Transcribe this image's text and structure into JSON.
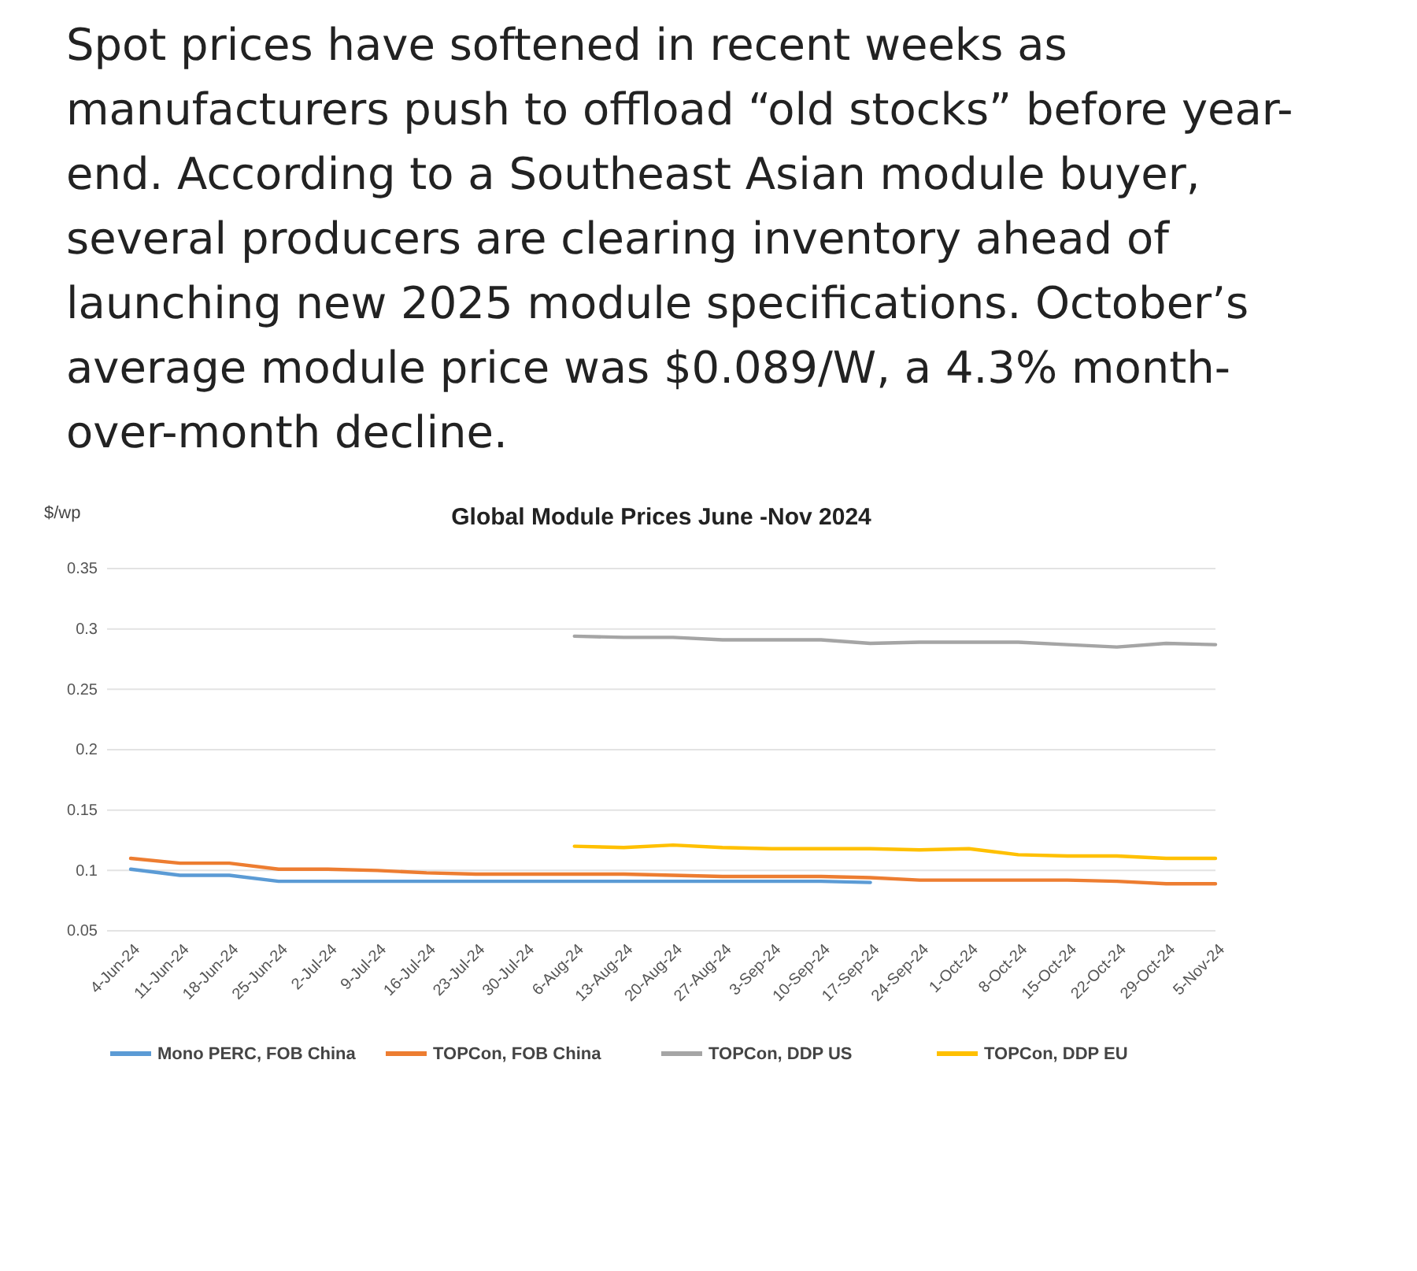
{
  "chart_data": {
    "type": "line",
    "title": "Global Module Prices June -Nov 2024",
    "ylabel": "$/wp",
    "annotations": [
      "Spot prices have softened in recent weeks as manufacturers push to offload “old stocks” before year-end. According to a Southeast Asian module buyer, several producers are clearing inventory ahead of launching new 2025 module specifications. October’s average module price was $0.089/W, a 4.3% month-over-month decline."
    ],
    "categories": [
      "4-Jun-24",
      "11-Jun-24",
      "18-Jun-24",
      "25-Jun-24",
      "2-Jul-24",
      "9-Jul-24",
      "16-Jul-24",
      "23-Jul-24",
      "30-Jul-24",
      "6-Aug-24",
      "13-Aug-24",
      "20-Aug-24",
      "27-Aug-24",
      "3-Sep-24",
      "10-Sep-24",
      "17-Sep-24",
      "24-Sep-24",
      "1-Oct-24",
      "8-Oct-24",
      "15-Oct-24",
      "22-Oct-24",
      "29-Oct-24",
      "5-Nov-24"
    ],
    "series": [
      {
        "name": "Mono PERC, FOB China",
        "color": "#5b9bd5",
        "values": [
          0.101,
          0.096,
          0.096,
          0.091,
          0.091,
          0.091,
          0.091,
          0.091,
          0.091,
          0.091,
          0.091,
          0.091,
          0.091,
          0.091,
          0.091,
          0.09,
          null,
          null,
          null,
          null,
          null,
          null,
          null
        ]
      },
      {
        "name": "TOPCon, FOB China",
        "color": "#ed7d31",
        "values": [
          0.11,
          0.106,
          0.106,
          0.101,
          0.101,
          0.1,
          0.098,
          0.097,
          0.097,
          0.097,
          0.097,
          0.096,
          0.095,
          0.095,
          0.095,
          0.094,
          0.092,
          0.092,
          0.092,
          0.092,
          0.091,
          0.089,
          0.089
        ]
      },
      {
        "name": "TOPCon, DDP US",
        "color": "#a5a5a5",
        "values": [
          null,
          null,
          null,
          null,
          null,
          null,
          null,
          null,
          null,
          0.294,
          0.293,
          0.293,
          0.291,
          0.291,
          0.291,
          0.288,
          0.289,
          0.289,
          0.289,
          0.287,
          0.285,
          0.288,
          0.287
        ]
      },
      {
        "name": "TOPCon, DDP EU",
        "color": "#ffc000",
        "values": [
          null,
          null,
          null,
          null,
          null,
          null,
          null,
          null,
          null,
          0.12,
          0.119,
          0.121,
          0.119,
          0.118,
          0.118,
          0.118,
          0.117,
          0.118,
          0.113,
          0.112,
          0.112,
          0.11,
          0.11
        ]
      }
    ],
    "ylim": [
      0.05,
      0.35
    ],
    "yticks": [
      0.05,
      0.1,
      0.15,
      0.2,
      0.25,
      0.3,
      0.35
    ],
    "grid": "y",
    "legend": "bottom",
    "marker": "none",
    "line_style": "solid"
  }
}
